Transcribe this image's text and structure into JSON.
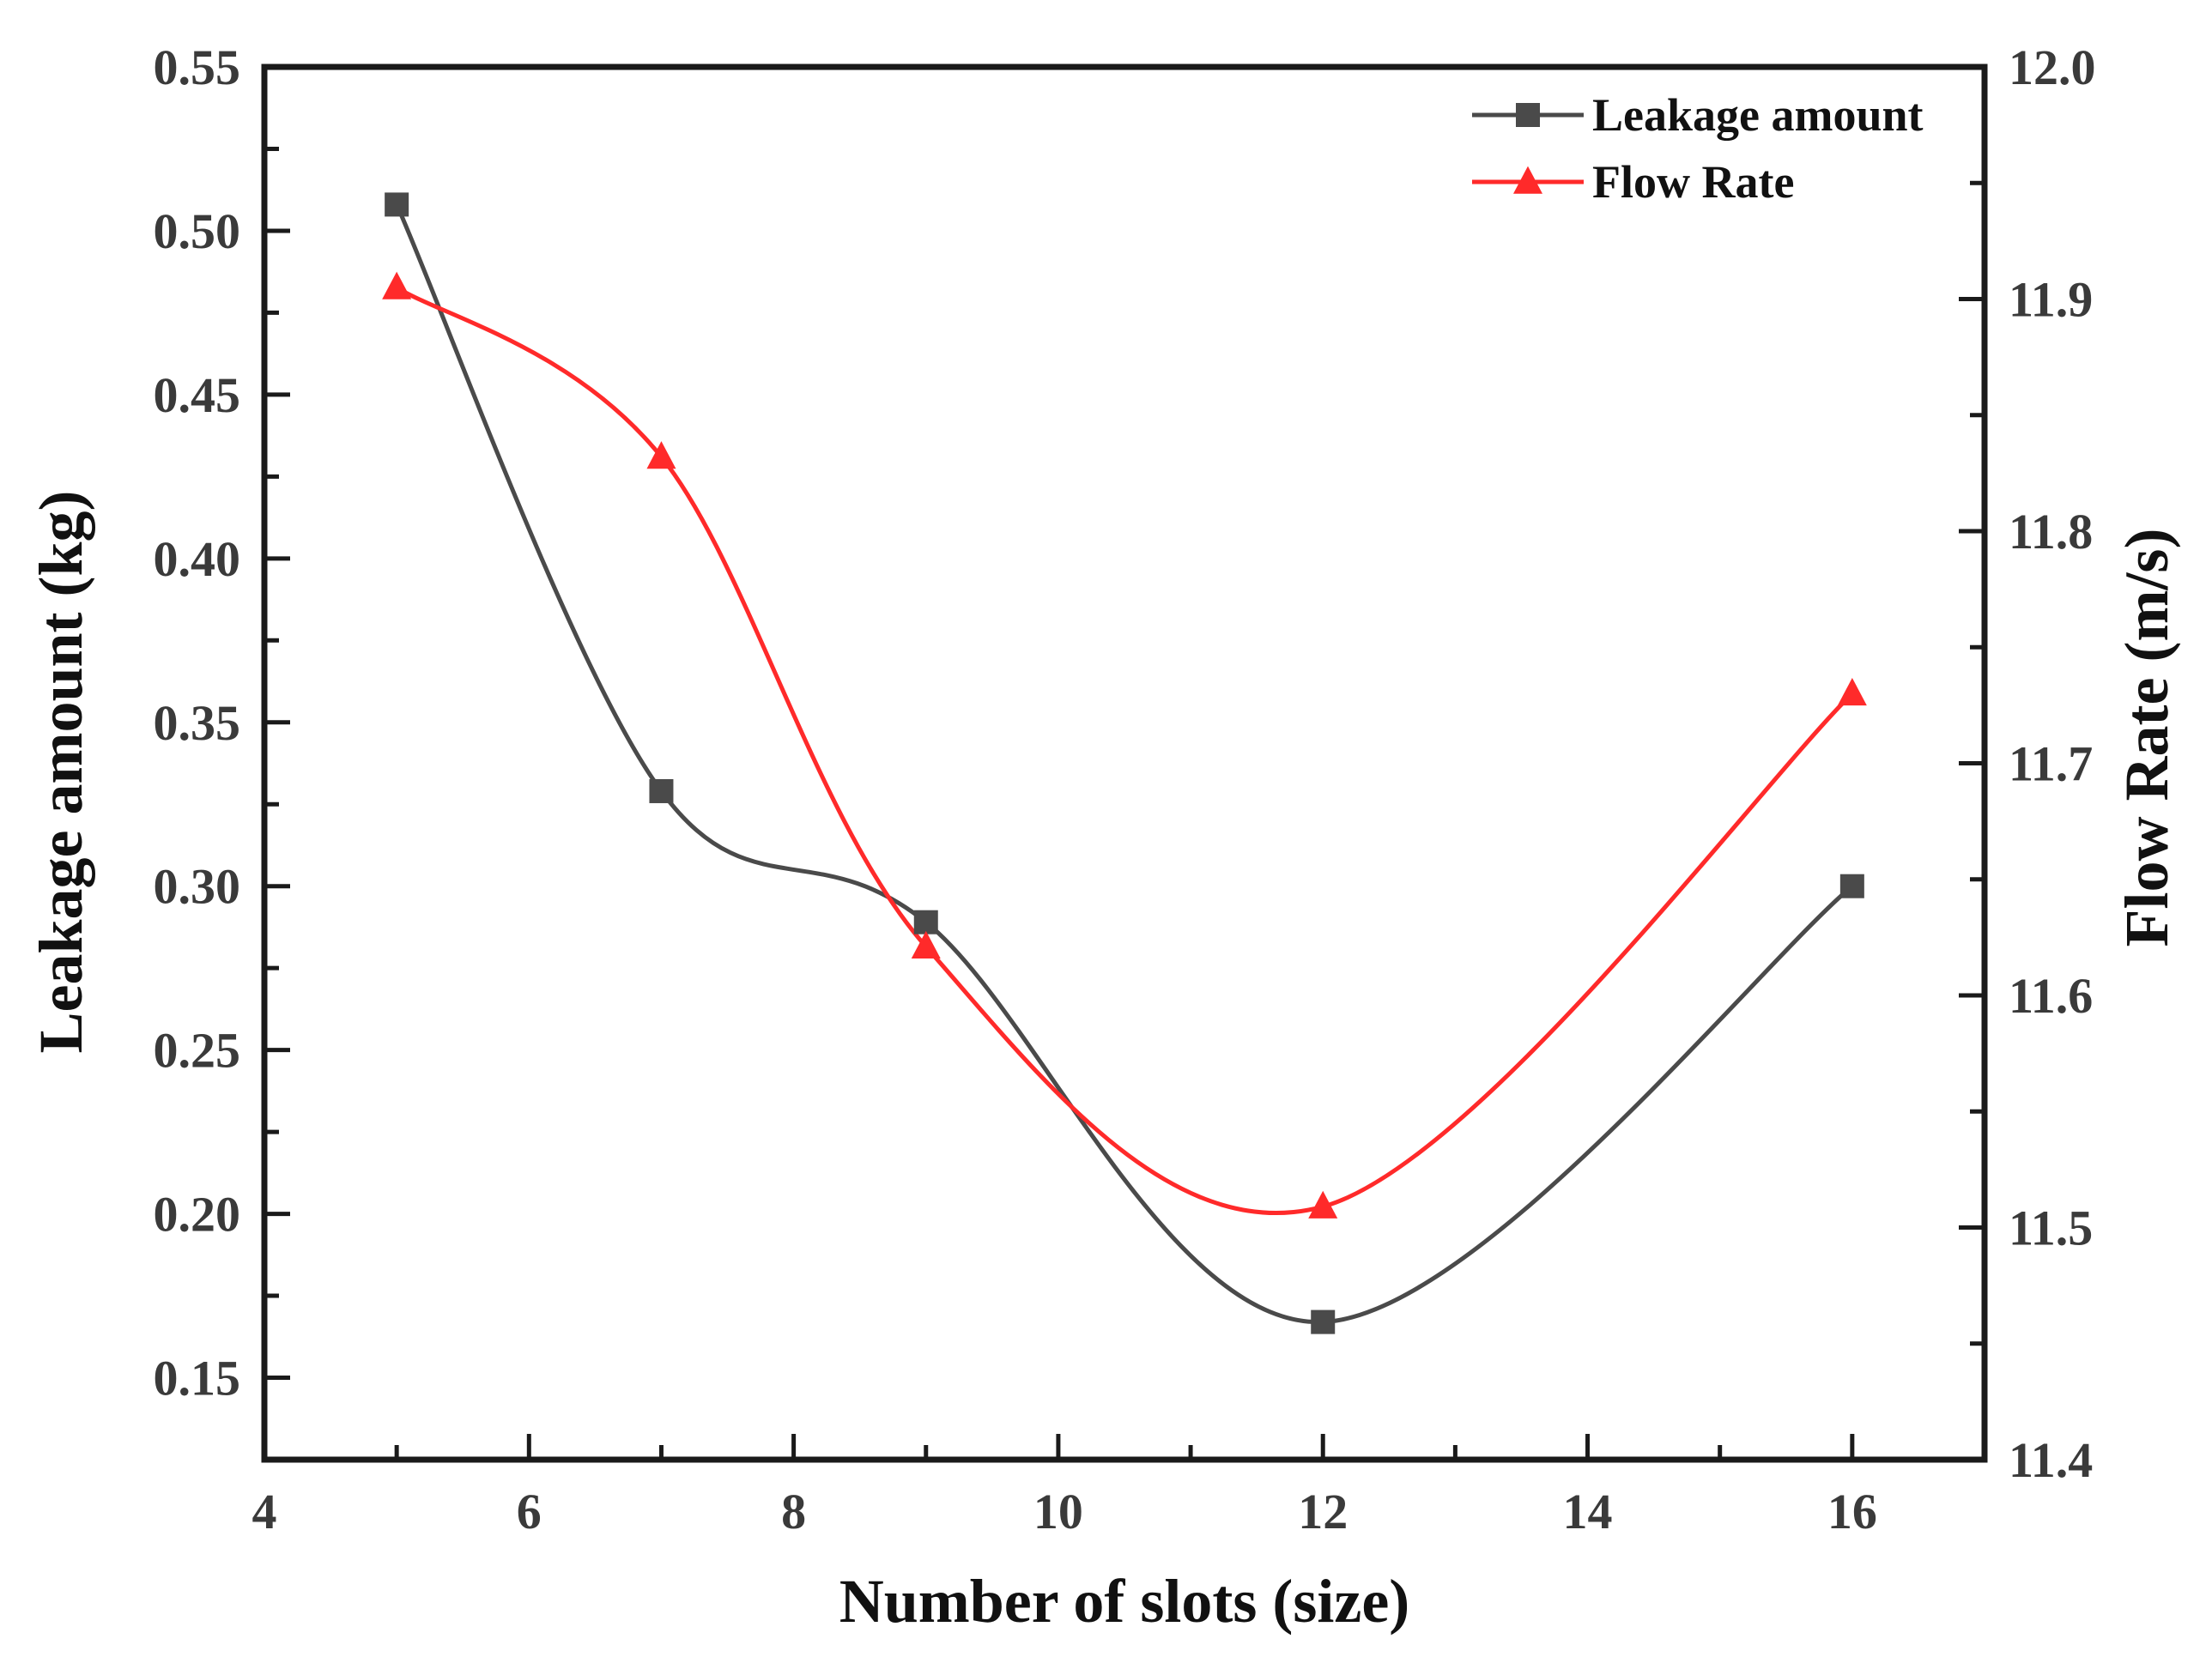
{
  "chart_data": {
    "type": "line",
    "title": "",
    "xlabel": "Number of slots (size)",
    "ylabel_left": "Leakage amount (kg)",
    "ylabel_right": "Flow Rate (m/s)",
    "xlim": [
      4,
      17
    ],
    "ylim_left": [
      0.125,
      0.55
    ],
    "ylim_right": [
      11.4,
      12.0
    ],
    "x_ticks": [
      "4",
      "6",
      "8",
      "10",
      "12",
      "14",
      "16"
    ],
    "x_tick_values": [
      4,
      6,
      8,
      10,
      12,
      14,
      16
    ],
    "y_left_ticks": [
      "0.15",
      "0.20",
      "0.25",
      "0.30",
      "0.35",
      "0.40",
      "0.45",
      "0.50",
      "0.55"
    ],
    "y_left_tick_values": [
      0.15,
      0.2,
      0.25,
      0.3,
      0.35,
      0.4,
      0.45,
      0.5,
      0.55
    ],
    "y_right_ticks": [
      "11.4",
      "11.5",
      "11.6",
      "11.7",
      "11.8",
      "11.9",
      "12.0"
    ],
    "y_right_tick_values": [
      11.4,
      11.5,
      11.6,
      11.7,
      11.8,
      11.9,
      12.0
    ],
    "grid": false,
    "legend_position": "top-right",
    "series": [
      {
        "name": "Leakage amount",
        "axis": "left",
        "color": "#4a4a4a",
        "marker": "square",
        "x": [
          5,
          7,
          9,
          12,
          16
        ],
        "values": [
          0.508,
          0.329,
          0.289,
          0.167,
          0.3
        ]
      },
      {
        "name": "Flow Rate",
        "axis": "right",
        "color": "#ff2a2a",
        "marker": "triangle",
        "x": [
          5,
          7,
          9,
          12,
          16
        ],
        "values": [
          11.905,
          11.832,
          11.621,
          11.509,
          11.73
        ]
      }
    ]
  }
}
